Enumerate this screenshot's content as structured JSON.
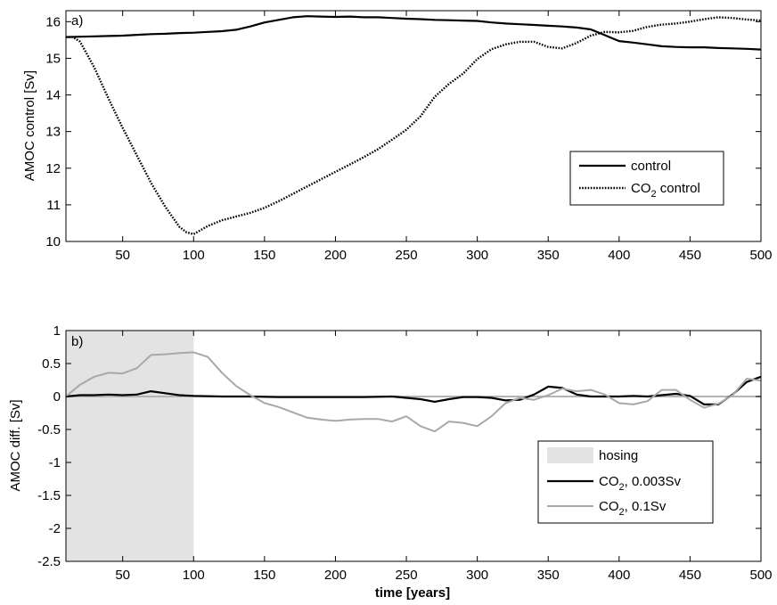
{
  "chart_data": [
    {
      "type": "line",
      "panel_tag": "a)",
      "xlabel": "",
      "ylabel": "AMOC control [Sv]",
      "xlim": [
        10,
        500
      ],
      "ylim": [
        10,
        16.3
      ],
      "xticks": [
        50,
        100,
        150,
        200,
        250,
        300,
        350,
        400,
        450,
        500
      ],
      "yticks": [
        10,
        11,
        12,
        13,
        14,
        15,
        16
      ],
      "grid": false,
      "legend_position": "lower-right",
      "series": [
        {
          "name": "control",
          "style": "solid",
          "color": "#000000",
          "x": [
            10,
            20,
            30,
            40,
            50,
            60,
            70,
            80,
            90,
            100,
            110,
            120,
            130,
            140,
            150,
            160,
            170,
            180,
            190,
            200,
            210,
            220,
            230,
            240,
            250,
            260,
            270,
            280,
            290,
            300,
            310,
            320,
            330,
            340,
            350,
            360,
            370,
            380,
            390,
            400,
            410,
            420,
            430,
            440,
            450,
            460,
            470,
            480,
            490,
            500
          ],
          "y": [
            15.58,
            15.59,
            15.6,
            15.61,
            15.62,
            15.64,
            15.66,
            15.67,
            15.69,
            15.7,
            15.72,
            15.74,
            15.78,
            15.87,
            15.98,
            16.05,
            16.12,
            16.15,
            16.14,
            16.13,
            16.14,
            16.12,
            16.12,
            16.1,
            16.08,
            16.07,
            16.05,
            16.04,
            16.03,
            16.02,
            15.98,
            15.95,
            15.93,
            15.91,
            15.89,
            15.87,
            15.84,
            15.79,
            15.63,
            15.47,
            15.43,
            15.38,
            15.33,
            15.31,
            15.3,
            15.3,
            15.28,
            15.27,
            15.26,
            15.24
          ]
        },
        {
          "name": "CO2 control",
          "name_parts": [
            "CO",
            "2",
            " control"
          ],
          "style": "dotted",
          "color": "#000000",
          "x": [
            10,
            15,
            20,
            25,
            30,
            40,
            50,
            60,
            70,
            80,
            90,
            95,
            100,
            110,
            120,
            130,
            140,
            150,
            160,
            170,
            180,
            190,
            200,
            210,
            220,
            230,
            240,
            250,
            260,
            270,
            280,
            290,
            300,
            310,
            320,
            330,
            340,
            350,
            360,
            370,
            380,
            390,
            400,
            410,
            420,
            430,
            440,
            450,
            460,
            470,
            480,
            490,
            500
          ],
          "y": [
            15.58,
            15.58,
            15.45,
            15.1,
            14.75,
            13.9,
            13.1,
            12.35,
            11.6,
            10.95,
            10.4,
            10.25,
            10.2,
            10.42,
            10.58,
            10.68,
            10.78,
            10.92,
            11.1,
            11.3,
            11.5,
            11.7,
            11.9,
            12.1,
            12.3,
            12.52,
            12.78,
            13.05,
            13.42,
            13.95,
            14.3,
            14.58,
            14.98,
            15.25,
            15.38,
            15.45,
            15.45,
            15.31,
            15.27,
            15.42,
            15.62,
            15.72,
            15.71,
            15.75,
            15.86,
            15.92,
            15.95,
            16.0,
            16.07,
            16.12,
            16.1,
            16.06,
            16.03
          ]
        }
      ]
    },
    {
      "type": "line",
      "panel_tag": "b)",
      "xlabel": "time [years]",
      "ylabel": "AMOC diff. [Sv]",
      "xlim": [
        10,
        500
      ],
      "ylim": [
        -2.5,
        1
      ],
      "xticks": [
        50,
        100,
        150,
        200,
        250,
        300,
        350,
        400,
        450,
        500
      ],
      "yticks": [
        -2.5,
        -2,
        -1.5,
        -1,
        -0.5,
        0,
        0.5,
        1
      ],
      "grid": false,
      "legend_position": "lower-right",
      "shaded_region": {
        "name": "hosing",
        "x": [
          10,
          100
        ],
        "color": "#e3e3e3"
      },
      "reference_line": {
        "y": 0,
        "color": "#b4b4b4"
      },
      "series": [
        {
          "name": "CO2, 0.003Sv",
          "name_parts": [
            "CO",
            "2",
            ", 0.003Sv"
          ],
          "style": "solid",
          "color": "#000000",
          "x": [
            10,
            20,
            30,
            40,
            50,
            60,
            70,
            80,
            90,
            100,
            120,
            140,
            160,
            180,
            200,
            220,
            240,
            260,
            270,
            280,
            290,
            300,
            310,
            320,
            330,
            340,
            350,
            360,
            370,
            380,
            390,
            400,
            410,
            420,
            430,
            440,
            450,
            460,
            470,
            480,
            490,
            500
          ],
          "y": [
            0.0,
            0.02,
            0.02,
            0.03,
            0.02,
            0.03,
            0.08,
            0.05,
            0.02,
            0.01,
            0.0,
            0.0,
            -0.01,
            -0.01,
            -0.01,
            -0.01,
            0.0,
            -0.04,
            -0.08,
            -0.04,
            -0.01,
            -0.01,
            -0.02,
            -0.06,
            -0.05,
            0.03,
            0.15,
            0.13,
            0.03,
            0.0,
            0.0,
            0.0,
            0.01,
            0.0,
            0.02,
            0.04,
            0.01,
            -0.12,
            -0.12,
            0.03,
            0.22,
            0.3
          ]
        },
        {
          "name": "CO2, 0.1Sv",
          "name_parts": [
            "CO",
            "2",
            ", 0.1Sv"
          ],
          "style": "solid",
          "color": "#a8a8a8",
          "x": [
            10,
            20,
            30,
            40,
            50,
            60,
            70,
            80,
            90,
            100,
            110,
            120,
            130,
            140,
            150,
            160,
            170,
            180,
            190,
            200,
            210,
            220,
            230,
            240,
            250,
            260,
            270,
            280,
            290,
            300,
            310,
            320,
            330,
            340,
            350,
            360,
            370,
            380,
            390,
            400,
            410,
            420,
            430,
            440,
            450,
            460,
            470,
            480,
            490,
            500
          ],
          "y": [
            0.0,
            0.18,
            0.3,
            0.36,
            0.35,
            0.43,
            0.63,
            0.64,
            0.66,
            0.67,
            0.6,
            0.36,
            0.16,
            0.02,
            -0.1,
            -0.16,
            -0.24,
            -0.32,
            -0.35,
            -0.37,
            -0.35,
            -0.34,
            -0.34,
            -0.38,
            -0.3,
            -0.45,
            -0.53,
            -0.38,
            -0.4,
            -0.45,
            -0.3,
            -0.1,
            -0.02,
            -0.05,
            0.02,
            0.12,
            0.08,
            0.1,
            0.03,
            -0.1,
            -0.12,
            -0.07,
            0.1,
            0.1,
            -0.05,
            -0.17,
            -0.11,
            0.02,
            0.27,
            0.24
          ]
        }
      ],
      "legend_entries": [
        "hosing",
        "CO2, 0.003Sv",
        "CO2, 0.1Sv"
      ]
    }
  ]
}
